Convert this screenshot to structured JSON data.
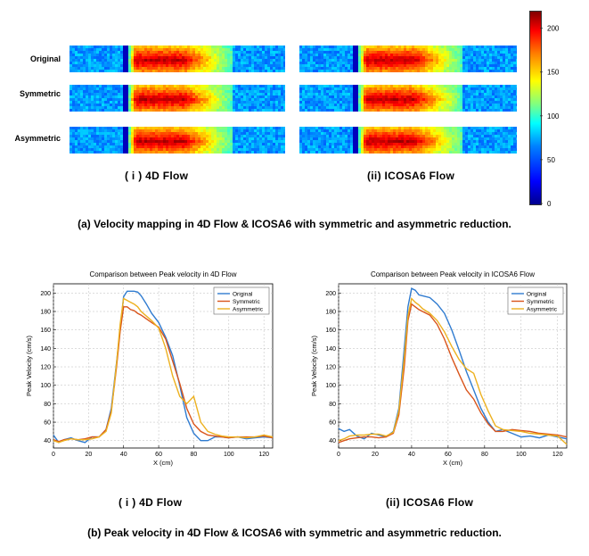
{
  "panel_a": {
    "row_labels": [
      "Original",
      "Symmetric",
      "Asymmetric"
    ],
    "subfig_labels": [
      "( i ) 4D Flow",
      "(ii) ICOSA6 Flow"
    ],
    "caption": "(a) Velocity mapping in 4D Flow & ICOSA6 with symmetric and asymmetric reduction.",
    "colorbar": {
      "min": 0,
      "max": 220,
      "ticks": [
        "0",
        "50",
        "100",
        "150",
        "200"
      ],
      "tick_values": [
        0,
        50,
        100,
        150,
        200
      ]
    }
  },
  "panel_b": {
    "subfig_labels": [
      "( i )  4D Flow",
      "(ii)  ICOSA6 Flow"
    ],
    "caption": "(b) Peak velocity in 4D Flow & ICOSA6 with symmetric and asymmetric reduction."
  },
  "colors": {
    "original": "#2f7bd0",
    "symmetric": "#d9541a",
    "asymmetric": "#edb120"
  },
  "chart_data": [
    {
      "type": "line",
      "title": "Comparison between Peak velocity in 4D Flow",
      "xlabel": "X (cm)",
      "ylabel": "Peak Velocity (cm/s)",
      "xlim": [
        0,
        125
      ],
      "ylim": [
        32,
        210
      ],
      "xticks": [
        0,
        20,
        40,
        60,
        80,
        100,
        120
      ],
      "yticks": [
        40,
        60,
        80,
        100,
        120,
        140,
        160,
        180,
        200
      ],
      "grid": true,
      "legend": "top-right",
      "series": [
        {
          "name": "Original",
          "x": [
            0,
            3,
            6,
            10,
            14,
            18,
            22,
            26,
            30,
            33,
            36,
            38,
            40,
            42,
            44,
            46,
            48,
            50,
            53,
            56,
            60,
            64,
            68,
            72,
            76,
            80,
            84,
            88,
            92,
            96,
            100,
            105,
            110,
            115,
            120,
            125
          ],
          "y": [
            46,
            38,
            41,
            43,
            40,
            38,
            44,
            44,
            52,
            75,
            125,
            160,
            196,
            202,
            202,
            202,
            201,
            197,
            188,
            178,
            168,
            152,
            132,
            100,
            65,
            48,
            40,
            40,
            44,
            44,
            43,
            44,
            42,
            43,
            44,
            43
          ]
        },
        {
          "name": "Symmetric",
          "x": [
            0,
            3,
            6,
            10,
            14,
            18,
            22,
            26,
            30,
            33,
            36,
            38,
            40,
            42,
            44,
            46,
            48,
            50,
            53,
            56,
            60,
            64,
            68,
            72,
            76,
            80,
            84,
            88,
            92,
            96,
            100,
            105,
            110,
            115,
            120,
            125
          ],
          "y": [
            41,
            39,
            41,
            42,
            41,
            42,
            44,
            44,
            52,
            72,
            120,
            158,
            185,
            185,
            182,
            181,
            178,
            176,
            172,
            168,
            163,
            150,
            126,
            102,
            75,
            58,
            50,
            46,
            45,
            44,
            43,
            44,
            44,
            44,
            45,
            43
          ]
        },
        {
          "name": "Asymmetric",
          "x": [
            0,
            3,
            6,
            10,
            14,
            18,
            22,
            26,
            30,
            33,
            36,
            38,
            40,
            42,
            44,
            46,
            48,
            50,
            53,
            56,
            60,
            64,
            68,
            72,
            76,
            80,
            84,
            88,
            92,
            96,
            100,
            105,
            110,
            115,
            120,
            125
          ],
          "y": [
            40,
            38,
            40,
            42,
            41,
            41,
            42,
            44,
            50,
            70,
            124,
            166,
            194,
            192,
            190,
            188,
            185,
            180,
            175,
            170,
            162,
            140,
            110,
            88,
            80,
            88,
            60,
            50,
            47,
            45,
            44,
            44,
            43,
            44,
            46,
            44
          ]
        }
      ]
    },
    {
      "type": "line",
      "title": "Comparison between Peak velocity in ICOSA6 Flow",
      "xlabel": "X (cm)",
      "ylabel": "Peak Velocity (cm/s)",
      "xlim": [
        0,
        125
      ],
      "ylim": [
        32,
        210
      ],
      "xticks": [
        0,
        20,
        40,
        60,
        80,
        100,
        120
      ],
      "yticks": [
        40,
        60,
        80,
        100,
        120,
        140,
        160,
        180,
        200
      ],
      "grid": true,
      "legend": "top-right",
      "series": [
        {
          "name": "Original",
          "x": [
            0,
            3,
            6,
            10,
            14,
            18,
            22,
            26,
            30,
            33,
            36,
            38,
            40,
            42,
            44,
            46,
            50,
            54,
            58,
            62,
            66,
            70,
            74,
            78,
            82,
            86,
            90,
            95,
            100,
            105,
            110,
            115,
            120,
            125
          ],
          "y": [
            53,
            50,
            52,
            45,
            42,
            48,
            46,
            44,
            50,
            75,
            140,
            185,
            205,
            203,
            198,
            197,
            195,
            188,
            178,
            160,
            138,
            115,
            95,
            75,
            60,
            50,
            52,
            48,
            44,
            45,
            43,
            46,
            44,
            42
          ]
        },
        {
          "name": "Symmetric",
          "x": [
            0,
            3,
            6,
            10,
            14,
            18,
            22,
            26,
            30,
            33,
            36,
            38,
            40,
            42,
            44,
            46,
            50,
            54,
            58,
            62,
            66,
            70,
            74,
            78,
            82,
            86,
            90,
            95,
            100,
            105,
            110,
            115,
            120,
            125
          ],
          "y": [
            38,
            40,
            42,
            43,
            44,
            44,
            43,
            44,
            48,
            68,
            120,
            170,
            188,
            185,
            182,
            180,
            176,
            166,
            150,
            130,
            112,
            95,
            85,
            70,
            58,
            50,
            50,
            52,
            51,
            50,
            48,
            47,
            46,
            44
          ]
        },
        {
          "name": "Asymmetric",
          "x": [
            0,
            3,
            6,
            10,
            14,
            18,
            22,
            26,
            30,
            33,
            36,
            38,
            40,
            42,
            44,
            46,
            50,
            54,
            58,
            62,
            66,
            70,
            74,
            78,
            82,
            86,
            90,
            95,
            100,
            105,
            110,
            115,
            120,
            125
          ],
          "y": [
            40,
            42,
            45,
            46,
            46,
            47,
            47,
            45,
            49,
            72,
            130,
            175,
            194,
            190,
            187,
            183,
            178,
            170,
            158,
            142,
            128,
            118,
            113,
            90,
            72,
            56,
            52,
            51,
            50,
            48,
            47,
            46,
            45,
            36
          ]
        }
      ]
    }
  ]
}
